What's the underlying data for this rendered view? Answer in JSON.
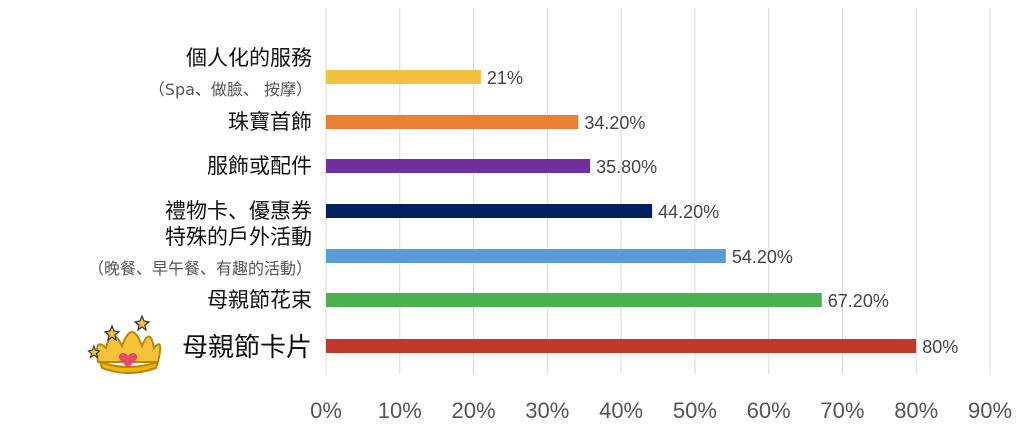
{
  "chart_data": {
    "type": "bar",
    "orientation": "horizontal",
    "categories": [
      {
        "label": "個人化的服務",
        "sublabel": "（Spa、做臉、 按摩）",
        "value": 21,
        "value_label": "21%",
        "color": "#F4C03F"
      },
      {
        "label": "珠寶首飾",
        "value": 34.2,
        "value_label": "34.20%",
        "color": "#ED7D31"
      },
      {
        "label": "服飾或配件",
        "value": 35.8,
        "value_label": "35.80%",
        "color": "#7030A0"
      },
      {
        "label": "禮物卡、優惠券",
        "value": 44.2,
        "value_label": "44.20%",
        "color": "#002060"
      },
      {
        "label": "特殊的戶外活動",
        "sublabel": "（晚餐、早午餐、有趣的活動）",
        "value": 54.2,
        "value_label": "54.20%",
        "color": "#5B9BD5"
      },
      {
        "label": "母親節花束",
        "value": 67.2,
        "value_label": "67.20%",
        "color": "#4CAF50"
      },
      {
        "label": "母親節卡片",
        "value": 80,
        "value_label": "80%",
        "color": "#C0392B",
        "highlight": true,
        "icon": "crown-icon"
      }
    ],
    "x_ticks": [
      "0%",
      "10%",
      "20%",
      "30%",
      "40%",
      "50%",
      "60%",
      "70%",
      "80%",
      "90%"
    ],
    "xlim": [
      0,
      90
    ],
    "grid": true,
    "legend": "none"
  }
}
